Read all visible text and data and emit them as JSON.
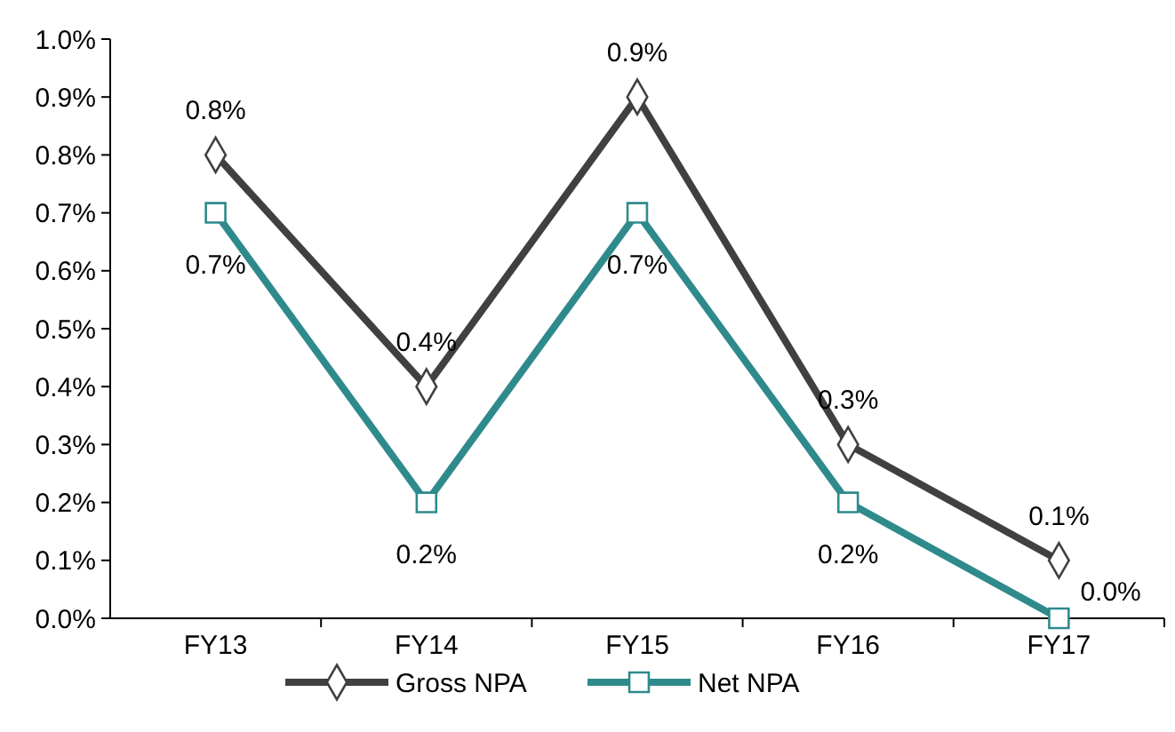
{
  "chart_data": {
    "type": "line",
    "categories": [
      "FY13",
      "FY14",
      "FY15",
      "FY16",
      "FY17"
    ],
    "series": [
      {
        "name": "Gross NPA",
        "color": "#404040",
        "marker": "diamond",
        "values": [
          0.8,
          0.4,
          0.9,
          0.3,
          0.1
        ],
        "value_labels": [
          "0.8%",
          "0.4%",
          "0.9%",
          "0.3%",
          "0.1%"
        ]
      },
      {
        "name": "Net NPA",
        "color": "#2f8a8c",
        "marker": "square",
        "values": [
          0.7,
          0.2,
          0.7,
          0.2,
          0.0
        ],
        "value_labels": [
          "0.7%",
          "0.2%",
          "0.7%",
          "0.2%",
          "0.0%"
        ]
      }
    ],
    "ylim": [
      0,
      1
    ],
    "yticks": [
      {
        "value": 0,
        "label": "0.0%"
      },
      {
        "value": 0.1,
        "label": "0.1%"
      },
      {
        "value": 0.2,
        "label": "0.2%"
      },
      {
        "value": 0.3,
        "label": "0.3%"
      },
      {
        "value": 0.4,
        "label": "0.4%"
      },
      {
        "value": 0.5,
        "label": "0.5%"
      },
      {
        "value": 0.6,
        "label": "0.6%"
      },
      {
        "value": 0.7,
        "label": "0.7%"
      },
      {
        "value": 0.8,
        "label": "0.8%"
      },
      {
        "value": 0.9,
        "label": "0.9%"
      },
      {
        "value": 1,
        "label": "1.0%"
      }
    ],
    "grid": false,
    "legend": "bottom",
    "line_style": "solid"
  }
}
